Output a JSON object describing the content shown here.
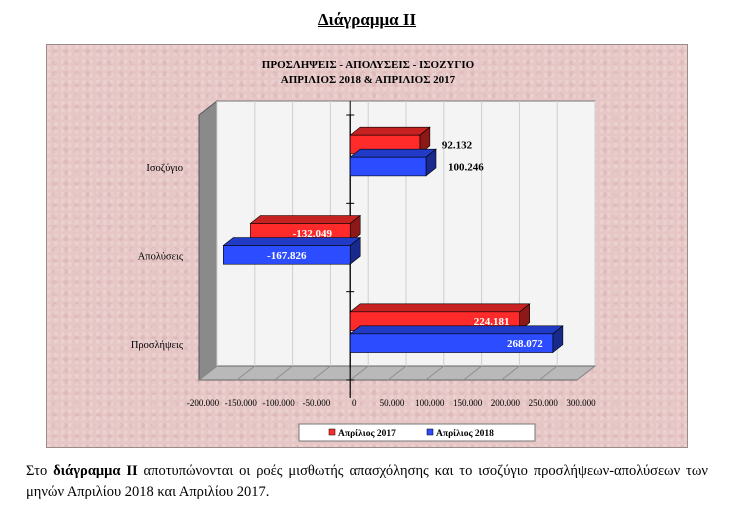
{
  "document": {
    "heading": "Διάγραμμα ΙΙ",
    "caption": {
      "before": "Στο ",
      "bold": "διάγραμμα ΙΙ",
      "after": " αποτυπώνονται οι ροές μισθωτής απασχόλησης και το ισοζύγιο προσλήψεων-απολύσεων των μηνών Απριλίου 2018 και Απριλίου 2017."
    }
  },
  "chart_data": {
    "type": "bar",
    "orientation": "horizontal",
    "title": [
      "ΠΡΟΣΛΗΨΕΙΣ - ΑΠΟΛΥΣΕΙΣ - ΙΣΟΖΥΓΙΟ",
      "ΑΠΡΙΛΙΟΣ 2018 & ΑΠΡΙΛΙΟΣ 2017"
    ],
    "categories": [
      "Ισοζύγιο",
      "Απολύσεις",
      "Προσλήψεις"
    ],
    "series": [
      {
        "name": "Απρίλιος 2017",
        "color": "#ff2b2b",
        "values": [
          92132,
          -132049,
          224181
        ],
        "labels": [
          "92.132",
          "-132.049",
          "224.181"
        ]
      },
      {
        "name": "Απρίλιος 2018",
        "color": "#2b4cff",
        "values": [
          100246,
          -167826,
          268072
        ],
        "labels": [
          "100.246",
          "-167.826",
          "268.072"
        ]
      }
    ],
    "xlim": [
      -200000,
      300000
    ],
    "xticks": [
      -200000,
      -150000,
      -100000,
      -50000,
      0,
      50000,
      100000,
      150000,
      200000,
      250000,
      300000
    ],
    "xtick_labels": [
      "-200.000",
      "-150.000",
      "-100.000",
      "-50.000",
      "0",
      "50.000",
      "100.000",
      "150.000",
      "200.000",
      "250.000",
      "300.000"
    ],
    "grid": true,
    "legend": "bottom",
    "style": "3d"
  }
}
